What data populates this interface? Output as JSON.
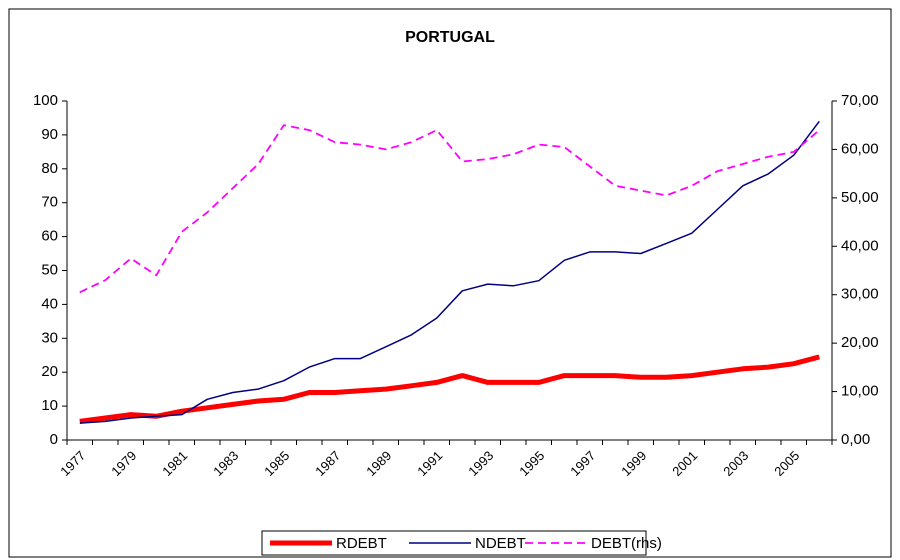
{
  "chart_data": {
    "type": "line",
    "title": "PORTUGAL",
    "categories": [
      "1977",
      null,
      "1979",
      null,
      "1981",
      null,
      "1983",
      null,
      "1985",
      null,
      "1987",
      null,
      "1989",
      null,
      "1991",
      null,
      "1993",
      null,
      "1995",
      null,
      "1997",
      null,
      "1999",
      null,
      "2001",
      null,
      "2003",
      null,
      "2005",
      null
    ],
    "series": [
      {
        "name": "RDEBT",
        "color": "#ff0000",
        "line_style": "thick",
        "values": [
          5.5,
          6.5,
          7.5,
          7,
          8.5,
          9.5,
          10.5,
          11.5,
          12,
          14,
          14,
          14.5,
          15,
          16,
          17,
          19,
          17,
          17,
          17,
          19,
          19,
          19,
          18.5,
          18.5,
          19,
          20,
          21,
          21.5,
          22.5,
          24.5
        ]
      },
      {
        "name": "NDEBT",
        "color": "#000080",
        "line_style": "thin",
        "values": [
          5,
          5.5,
          6.5,
          7,
          7.5,
          12,
          14,
          15,
          17.5,
          21.5,
          24,
          24,
          27.5,
          31,
          36,
          44,
          46,
          45.5,
          47,
          53,
          55.5,
          55.5,
          55,
          58,
          61,
          68,
          75,
          78.5,
          84,
          94
        ]
      },
      {
        "name": "DEBT(rhs)",
        "color": "#ff00ff",
        "line_style": "dashed",
        "axis": "y2",
        "values": [
          30.5,
          33,
          37.5,
          34,
          43,
          47,
          52,
          57,
          65,
          64,
          61.5,
          61,
          60,
          61.5,
          64,
          57.5,
          58,
          59,
          61,
          60.5,
          56.5,
          52.5,
          51.5,
          50.5,
          52.5,
          55.5,
          57,
          58.5,
          59.5,
          64
        ]
      }
    ],
    "ylim": [
      0,
      100
    ],
    "yticks": [
      0,
      10,
      20,
      30,
      40,
      50,
      60,
      70,
      80,
      90,
      100
    ],
    "y2lim": [
      0,
      70
    ],
    "y2ticks": [
      {
        "value": 0,
        "label": "0,00"
      },
      {
        "value": 10,
        "label": "10,00"
      },
      {
        "value": 20,
        "label": "20,00"
      },
      {
        "value": 30,
        "label": "30,00"
      },
      {
        "value": 40,
        "label": "40,00"
      },
      {
        "value": 50,
        "label": "50,00"
      },
      {
        "value": 60,
        "label": "60,00"
      },
      {
        "value": 70,
        "label": "70,00"
      }
    ],
    "legend": "bottom"
  }
}
